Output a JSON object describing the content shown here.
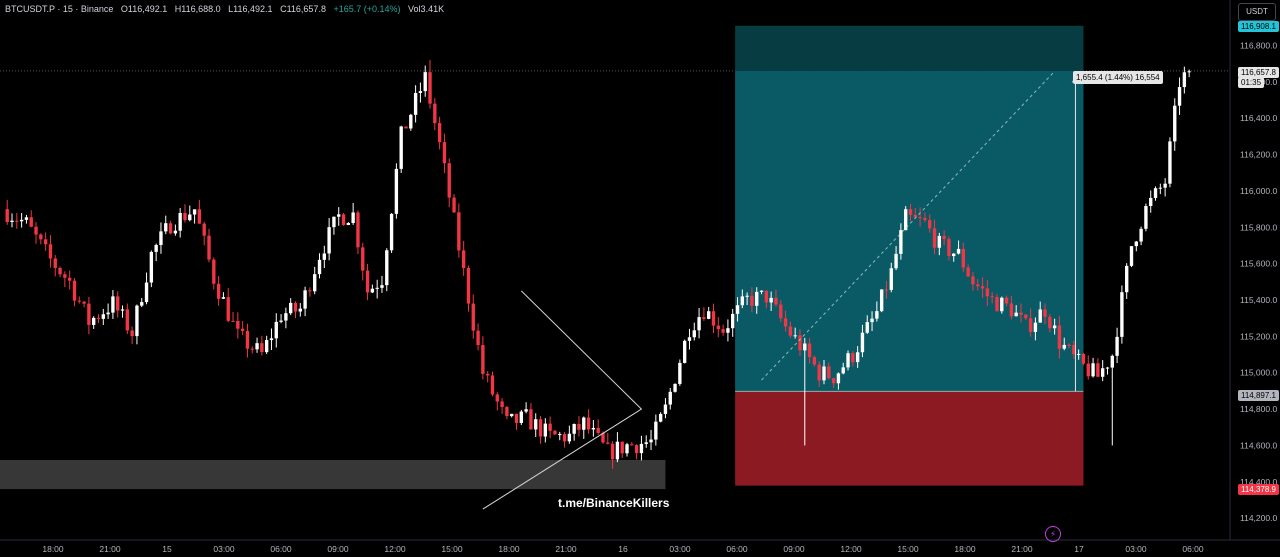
{
  "header": {
    "symbol": "BTCUSDT.P · 15 · Binance",
    "open": "O116,492.1",
    "high": "H116,688.0",
    "low": "L116,492.1",
    "close": "C116,657.8",
    "change": "+165.7 (+0.14%)",
    "volume": "Vol3.41K"
  },
  "currency_button": "USDT",
  "watermark": "t.me/BinanceKillers",
  "price_badges": {
    "target": "116,908.1",
    "last_price": "116,657.8",
    "countdown": "01:35",
    "entry": "114,897.1",
    "stop": "114,378.9"
  },
  "measure_label": "1,655.4 (1.44%) 16,554",
  "colors": {
    "up": "#ffffff",
    "down": "#f23645",
    "target_zone": "#0a5a66",
    "stop_zone": "#8b1a22",
    "support_band": "#4a4a4a"
  },
  "icons": {
    "alert": "lightning-icon"
  },
  "chart_data": {
    "type": "candlestick",
    "ylim": [
      114080,
      117050
    ],
    "y_ticks": [
      114200,
      114400,
      114600,
      114800,
      115000,
      115200,
      115400,
      115600,
      115800,
      116000,
      116200,
      116400,
      116600,
      116800
    ],
    "y_tick_labels": [
      "114,200.0",
      "114,400.0",
      "114,600.0",
      "114,800.0",
      "115,000.0",
      "115,200.0",
      "115,400.0",
      "115,600.0",
      "115,800.0",
      "116,000.0",
      "116,200.0",
      "116,400.0",
      "116,600.0",
      "116,800.0"
    ],
    "x_tick_labels": [
      "18:00",
      "21:00",
      "15",
      "03:00",
      "06:00",
      "09:00",
      "12:00",
      "15:00",
      "18:00",
      "21:00",
      "16",
      "03:00",
      "06:00",
      "09:00",
      "12:00",
      "15:00",
      "18:00",
      "21:00",
      "17",
      "03:00",
      "06:00"
    ],
    "bars_visible": 256,
    "path": [
      [
        0,
        115900
      ],
      [
        5,
        115820
      ],
      [
        10,
        115620
      ],
      [
        14,
        115500
      ],
      [
        18,
        115280
      ],
      [
        23,
        115380
      ],
      [
        27,
        115220
      ],
      [
        31,
        115650
      ],
      [
        35,
        115820
      ],
      [
        40,
        115900
      ],
      [
        44,
        115520
      ],
      [
        49,
        115200
      ],
      [
        54,
        115100
      ],
      [
        58,
        115320
      ],
      [
        62,
        115350
      ],
      [
        66,
        115650
      ],
      [
        70,
        115860
      ],
      [
        73,
        115870
      ],
      [
        76,
        115450
      ],
      [
        79,
        115520
      ],
      [
        83,
        116300
      ],
      [
        88,
        116620
      ],
      [
        91,
        116250
      ],
      [
        96,
        115550
      ],
      [
        100,
        115000
      ],
      [
        105,
        114720
      ],
      [
        109,
        114750
      ],
      [
        114,
        114650
      ],
      [
        118,
        114650
      ],
      [
        121,
        114720
      ],
      [
        126,
        114560
      ],
      [
        130,
        114600
      ],
      [
        135,
        114620
      ],
      [
        138,
        114800
      ],
      [
        143,
        115250
      ],
      [
        146,
        115350
      ],
      [
        150,
        115240
      ],
      [
        155,
        115400
      ],
      [
        159,
        115420
      ],
      [
        163,
        115250
      ],
      [
        166,
        115150
      ],
      [
        170,
        115000
      ],
      [
        173,
        114980
      ],
      [
        177,
        115100
      ],
      [
        182,
        115330
      ],
      [
        185,
        115550
      ],
      [
        188,
        115850
      ],
      [
        192,
        115820
      ],
      [
        195,
        115700
      ],
      [
        199,
        115650
      ],
      [
        202,
        115500
      ],
      [
        206,
        115400
      ],
      [
        210,
        115350
      ],
      [
        213,
        115250
      ],
      [
        217,
        115350
      ],
      [
        220,
        115170
      ],
      [
        224,
        115050
      ],
      [
        228,
        114980
      ],
      [
        231,
        115100
      ],
      [
        235,
        115700
      ],
      [
        238,
        115900
      ],
      [
        242,
        116050
      ],
      [
        245,
        116600
      ],
      [
        247,
        116657.8
      ]
    ],
    "wicks": [
      [
        89,
        116720
      ],
      [
        167,
        114600
      ],
      [
        231,
        114600
      ]
    ],
    "last_close": 116657.8,
    "target_price": 116908.1,
    "entry_price": 114897.1,
    "stop_price": 114378.9,
    "support_zone": [
      114360,
      114520
    ],
    "high_line": 116660
  }
}
